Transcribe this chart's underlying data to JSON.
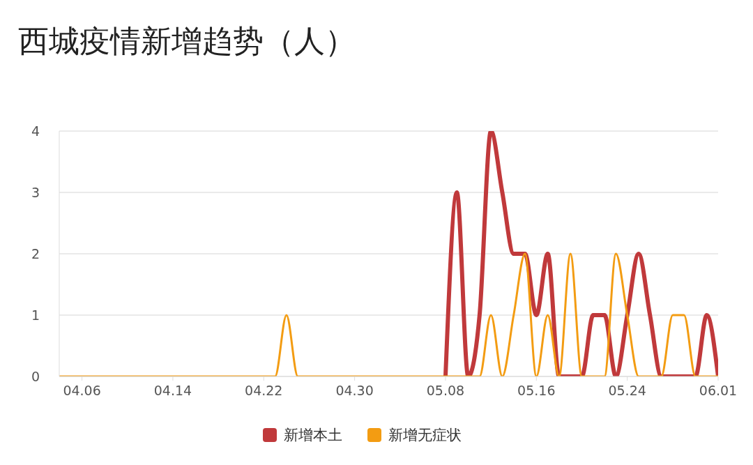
{
  "chart_data": {
    "type": "line",
    "title": "西城疫情新增趋势（人）",
    "x": [
      "--04-04",
      "--04-05",
      "--04-06",
      "--04-07",
      "--04-08",
      "--04-09",
      "--04-10",
      "--04-11",
      "--04-12",
      "--04-13",
      "--04-14",
      "--04-15",
      "--04-16",
      "--04-17",
      "--04-18",
      "--04-19",
      "--04-20",
      "--04-21",
      "--04-22",
      "--04-23",
      "--04-24",
      "--04-25",
      "--04-26",
      "--04-27",
      "--04-28",
      "--04-29",
      "--04-30",
      "--05-01",
      "--05-02",
      "--05-03",
      "--05-04",
      "--05-05",
      "--05-06",
      "--05-07",
      "--05-08",
      "--05-09",
      "--05-10",
      "--05-11",
      "--05-12",
      "--05-13",
      "--05-14",
      "--05-15",
      "--05-16",
      "--05-17",
      "--05-18",
      "--05-19",
      "--05-20",
      "--05-21",
      "--05-22",
      "--05-23",
      "--05-24",
      "--05-25",
      "--05-26",
      "--05-27",
      "--05-28",
      "--05-29",
      "--05-30",
      "--05-31",
      "--06-01"
    ],
    "series": [
      {
        "name": "新增本土",
        "color": "#c0393b",
        "values": [
          null,
          null,
          null,
          null,
          null,
          null,
          null,
          null,
          null,
          null,
          null,
          null,
          null,
          null,
          null,
          null,
          null,
          null,
          null,
          null,
          null,
          null,
          null,
          null,
          null,
          null,
          null,
          null,
          null,
          null,
          null,
          null,
          null,
          null,
          0,
          3,
          0,
          1,
          4,
          3,
          2,
          2,
          1,
          2,
          0,
          0,
          0,
          1,
          1,
          0,
          1,
          2,
          1,
          0,
          0,
          0,
          0,
          1,
          0
        ]
      },
      {
        "name": "新增无症状",
        "color": "#f39c12",
        "values": [
          0,
          0,
          0,
          0,
          0,
          0,
          0,
          0,
          0,
          0,
          0,
          0,
          0,
          0,
          0,
          0,
          0,
          0,
          0,
          0,
          1,
          0,
          0,
          0,
          0,
          0,
          0,
          0,
          0,
          0,
          0,
          0,
          0,
          0,
          0,
          0,
          0,
          0,
          1,
          0,
          1,
          2,
          0,
          1,
          0,
          2,
          0,
          0,
          0,
          2,
          1,
          0,
          0,
          0,
          1,
          1,
          0,
          0,
          0
        ]
      }
    ],
    "xlim": [
      "--04-04",
      "--06-01"
    ],
    "xticks": [
      {
        "value": "--04-06",
        "label": "04.06"
      },
      {
        "value": "--04-14",
        "label": "04.14"
      },
      {
        "value": "--04-22",
        "label": "04.22"
      },
      {
        "value": "--04-30",
        "label": "04.30"
      },
      {
        "value": "--05-08",
        "label": "05.08"
      },
      {
        "value": "--05-16",
        "label": "05.16"
      },
      {
        "value": "--05-24",
        "label": "05.24"
      },
      {
        "value": "--06-01",
        "label": "06.01"
      }
    ],
    "ylim": [
      0,
      4
    ],
    "yticks": [
      0,
      1,
      2,
      3,
      4
    ],
    "grid": "y",
    "legend": "bottom",
    "marker": "none",
    "line_style": "solid"
  }
}
